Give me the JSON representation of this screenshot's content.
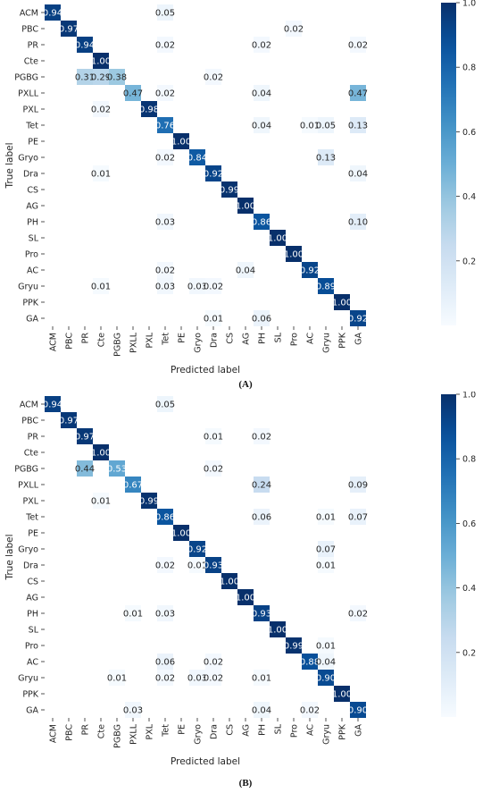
{
  "chart_data": [
    {
      "type": "heatmap",
      "caption": "(A)",
      "xlabel": "Predicted label",
      "ylabel": "True label",
      "labels": [
        "ACM",
        "PBC",
        "PR",
        "Cte",
        "PGBG",
        "PXLL",
        "PXL",
        "Tet",
        "PE",
        "Gryo",
        "Dra",
        "CS",
        "AG",
        "PH",
        "SL",
        "Pro",
        "AC",
        "Gryu",
        "PPK",
        "GA"
      ],
      "colorbar": {
        "min": 0,
        "max": 1.0,
        "ticks": [
          "0.2",
          "0.4",
          "0.6",
          "0.8",
          "1.0"
        ],
        "colormap": "Blues"
      },
      "cells": [
        [
          0,
          0,
          "0.94"
        ],
        [
          0,
          7,
          "0.05"
        ],
        [
          1,
          1,
          "0.97"
        ],
        [
          1,
          15,
          "0.02"
        ],
        [
          2,
          2,
          "0.94"
        ],
        [
          2,
          7,
          "0.02"
        ],
        [
          2,
          13,
          "0.02"
        ],
        [
          2,
          19,
          "0.02"
        ],
        [
          3,
          3,
          "1.00"
        ],
        [
          4,
          2,
          "0.31"
        ],
        [
          4,
          3,
          "0.29"
        ],
        [
          4,
          4,
          "0.38"
        ],
        [
          4,
          10,
          "0.02"
        ],
        [
          5,
          5,
          "0.47"
        ],
        [
          5,
          7,
          "0.02"
        ],
        [
          5,
          13,
          "0.04"
        ],
        [
          5,
          19,
          "0.47"
        ],
        [
          6,
          3,
          "0.02"
        ],
        [
          6,
          6,
          "0.98"
        ],
        [
          7,
          7,
          "0.76"
        ],
        [
          7,
          13,
          "0.04"
        ],
        [
          7,
          16,
          "0.01"
        ],
        [
          7,
          17,
          "0.05"
        ],
        [
          7,
          19,
          "0.13"
        ],
        [
          8,
          8,
          "1.00"
        ],
        [
          9,
          7,
          "0.02"
        ],
        [
          9,
          9,
          "0.84"
        ],
        [
          9,
          17,
          "0.13"
        ],
        [
          10,
          3,
          "0.01"
        ],
        [
          10,
          10,
          "0.92"
        ],
        [
          10,
          19,
          "0.04"
        ],
        [
          11,
          11,
          "0.99"
        ],
        [
          12,
          12,
          "1.00"
        ],
        [
          13,
          7,
          "0.03"
        ],
        [
          13,
          13,
          "0.86"
        ],
        [
          13,
          19,
          "0.10"
        ],
        [
          14,
          14,
          "1.00"
        ],
        [
          15,
          15,
          "1.00"
        ],
        [
          16,
          7,
          "0.02"
        ],
        [
          16,
          12,
          "0.04"
        ],
        [
          16,
          16,
          "0.92"
        ],
        [
          17,
          3,
          "0.01"
        ],
        [
          17,
          7,
          "0.03"
        ],
        [
          17,
          9,
          "0.03"
        ],
        [
          17,
          10,
          "0.02"
        ],
        [
          17,
          17,
          "0.89"
        ],
        [
          18,
          18,
          "1.00"
        ],
        [
          19,
          10,
          "0.01"
        ],
        [
          19,
          13,
          "0.06"
        ],
        [
          19,
          19,
          "0.92"
        ]
      ]
    },
    {
      "type": "heatmap",
      "caption": "(B)",
      "xlabel": "Predicted label",
      "ylabel": "True label",
      "labels": [
        "ACM",
        "PBC",
        "PR",
        "Cte",
        "PGBG",
        "PXLL",
        "PXL",
        "Tet",
        "PE",
        "Gryo",
        "Dra",
        "CS",
        "AG",
        "PH",
        "SL",
        "Pro",
        "AC",
        "Gryu",
        "PPK",
        "GA"
      ],
      "colorbar": {
        "min": 0,
        "max": 1.0,
        "ticks": [
          "0.2",
          "0.4",
          "0.6",
          "0.8",
          "1.0"
        ],
        "colormap": "Blues"
      },
      "cells": [
        [
          0,
          0,
          "0.94"
        ],
        [
          0,
          7,
          "0.05"
        ],
        [
          1,
          1,
          "0.97"
        ],
        [
          2,
          2,
          "0.97"
        ],
        [
          2,
          10,
          "0.01"
        ],
        [
          2,
          13,
          "0.02"
        ],
        [
          3,
          3,
          "1.00"
        ],
        [
          4,
          2,
          "0.44"
        ],
        [
          4,
          4,
          "0.53"
        ],
        [
          4,
          10,
          "0.02"
        ],
        [
          5,
          5,
          "0.67"
        ],
        [
          5,
          13,
          "0.24"
        ],
        [
          5,
          19,
          "0.09"
        ],
        [
          6,
          3,
          "0.01"
        ],
        [
          6,
          6,
          "0.99"
        ],
        [
          7,
          7,
          "0.86"
        ],
        [
          7,
          13,
          "0.06"
        ],
        [
          7,
          17,
          "0.01"
        ],
        [
          7,
          19,
          "0.07"
        ],
        [
          8,
          8,
          "1.00"
        ],
        [
          9,
          9,
          "0.92"
        ],
        [
          9,
          17,
          "0.07"
        ],
        [
          10,
          7,
          "0.02"
        ],
        [
          10,
          9,
          "0.01"
        ],
        [
          10,
          10,
          "0.93"
        ],
        [
          10,
          17,
          "0.01"
        ],
        [
          11,
          11,
          "1.00"
        ],
        [
          12,
          12,
          "1.00"
        ],
        [
          13,
          5,
          "0.01"
        ],
        [
          13,
          7,
          "0.03"
        ],
        [
          13,
          13,
          "0.93"
        ],
        [
          13,
          19,
          "0.02"
        ],
        [
          14,
          14,
          "1.00"
        ],
        [
          15,
          15,
          "0.99"
        ],
        [
          15,
          17,
          "0.01"
        ],
        [
          16,
          7,
          "0.06"
        ],
        [
          16,
          10,
          "0.02"
        ],
        [
          16,
          16,
          "0.88"
        ],
        [
          16,
          17,
          "0.04"
        ],
        [
          17,
          4,
          "0.01"
        ],
        [
          17,
          7,
          "0.02"
        ],
        [
          17,
          9,
          "0.03"
        ],
        [
          17,
          10,
          "0.02"
        ],
        [
          17,
          13,
          "0.01"
        ],
        [
          17,
          17,
          "0.90"
        ],
        [
          18,
          18,
          "1.00"
        ],
        [
          19,
          5,
          "0.03"
        ],
        [
          19,
          13,
          "0.04"
        ],
        [
          19,
          16,
          "0.02"
        ],
        [
          19,
          19,
          "0.90"
        ]
      ]
    }
  ]
}
